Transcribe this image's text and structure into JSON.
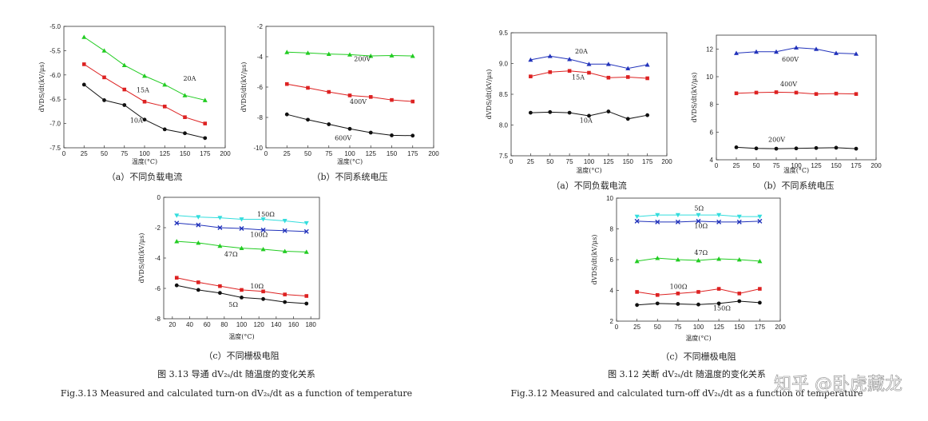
{
  "figures": [
    {
      "caption_cn": "图 3.13  导通 dV₂ₛ/dt  随温度的变化关系",
      "caption_en": "Fig.3.13 Measured and calculated turn-on dV₂ₛ/dt as a function of temperature"
    },
    {
      "caption_cn": "图 3.12  关断 dV₂ₛ/dt  随温度的变化关系",
      "caption_en": "Fig.3.12 Measured and calculated turn-off dV₂ₛ/dt as a function of temperature"
    }
  ],
  "watermark": "知乎 @卧虎藏龙",
  "chart_data": [
    {
      "id": "on_a",
      "type": "line",
      "subcaption": "（a）不同负载电流",
      "xlabel": "温度(°C)",
      "ylabel": "dVDS/dt(kV/μs)",
      "xlim": [
        0,
        200
      ],
      "ylim": [
        -7.5,
        -5.0
      ],
      "xticks": [
        0,
        25,
        50,
        75,
        100,
        125,
        150,
        175,
        200
      ],
      "yticks": [
        -7.5,
        -7.0,
        -6.5,
        -6.0,
        -5.5,
        -5.0
      ],
      "ytick_labels": [
        "-7.5",
        "-7.0",
        "-6.5",
        "-6.0",
        "-5.5",
        "-5.0"
      ],
      "x": [
        25,
        50,
        75,
        100,
        125,
        150,
        175
      ],
      "series": [
        {
          "name": "20A",
          "color": "#22cc22",
          "marker": "tri",
          "values": [
            -5.22,
            -5.5,
            -5.8,
            -6.02,
            -6.2,
            -6.42,
            -6.52
          ]
        },
        {
          "name": "15A",
          "color": "#dd2222",
          "marker": "square",
          "values": [
            -5.78,
            -6.05,
            -6.3,
            -6.55,
            -6.65,
            -6.87,
            -7.0
          ]
        },
        {
          "name": "10A",
          "color": "#111111",
          "marker": "circle",
          "values": [
            -6.2,
            -6.52,
            -6.62,
            -6.92,
            -7.12,
            -7.2,
            -7.3
          ]
        }
      ],
      "annotations": [
        {
          "text": "20A",
          "x": 148,
          "y": -6.12
        },
        {
          "text": "15A",
          "x": 90,
          "y": -6.36
        },
        {
          "text": "10A",
          "x": 82,
          "y": -6.98
        }
      ]
    },
    {
      "id": "on_b",
      "type": "line",
      "subcaption": "（b）不同系统电压",
      "xlabel": "温度(°C)",
      "ylabel": "dVDS/dt(kV/μs)",
      "xlim": [
        0,
        200
      ],
      "ylim": [
        -10,
        -2
      ],
      "xticks": [
        0,
        25,
        50,
        75,
        100,
        125,
        150,
        175,
        200
      ],
      "yticks": [
        -10,
        -8,
        -6,
        -4,
        -2
      ],
      "ytick_labels": [
        "-10",
        "-8",
        "-6",
        "-4",
        "-2"
      ],
      "x": [
        25,
        50,
        75,
        100,
        125,
        150,
        175
      ],
      "series": [
        {
          "name": "200V",
          "color": "#22cc22",
          "marker": "tri",
          "values": [
            -3.7,
            -3.75,
            -3.82,
            -3.86,
            -3.95,
            -3.92,
            -3.95
          ]
        },
        {
          "name": "400V",
          "color": "#dd2222",
          "marker": "square",
          "values": [
            -5.8,
            -6.05,
            -6.32,
            -6.55,
            -6.65,
            -6.85,
            -6.95
          ]
        },
        {
          "name": "600V",
          "color": "#111111",
          "marker": "circle",
          "values": [
            -7.8,
            -8.15,
            -8.45,
            -8.75,
            -9.0,
            -9.18,
            -9.2
          ]
        }
      ],
      "annotations": [
        {
          "text": "200V",
          "x": 105,
          "y": -4.3
        },
        {
          "text": "400V",
          "x": 100,
          "y": -7.1
        },
        {
          "text": "600V",
          "x": 82,
          "y": -9.5
        }
      ]
    },
    {
      "id": "on_c",
      "type": "line",
      "subcaption": "（c）不同栅极电阻",
      "xlabel": "温度(°C)",
      "ylabel": "dVDS/dt(kV/μs)",
      "xlim": [
        10,
        190
      ],
      "ylim": [
        -8,
        0
      ],
      "xticks": [
        20,
        40,
        60,
        80,
        100,
        120,
        140,
        160,
        180
      ],
      "yticks": [
        -8,
        -6,
        -4,
        -2,
        0
      ],
      "ytick_labels": [
        "-8",
        "-6",
        "-4",
        "-2",
        "0"
      ],
      "x": [
        25,
        50,
        75,
        100,
        125,
        150,
        175
      ],
      "series": [
        {
          "name": "150Ω",
          "color": "#33dddd",
          "marker": "tridown",
          "values": [
            -1.2,
            -1.3,
            -1.35,
            -1.45,
            -1.45,
            -1.55,
            -1.7
          ]
        },
        {
          "name": "100Ω",
          "color": "#2233bb",
          "marker": "x",
          "values": [
            -1.7,
            -1.82,
            -2.0,
            -2.05,
            -2.15,
            -2.2,
            -2.25
          ]
        },
        {
          "name": "47Ω",
          "color": "#22cc22",
          "marker": "tri",
          "values": [
            -2.9,
            -3.0,
            -3.2,
            -3.35,
            -3.42,
            -3.55,
            -3.6
          ]
        },
        {
          "name": "10Ω",
          "color": "#dd2222",
          "marker": "square",
          "values": [
            -5.3,
            -5.6,
            -5.85,
            -6.1,
            -6.2,
            -6.4,
            -6.5
          ]
        },
        {
          "name": "5Ω",
          "color": "#111111",
          "marker": "circle",
          "values": [
            -5.8,
            -6.1,
            -6.3,
            -6.6,
            -6.7,
            -6.9,
            -7.0
          ]
        }
      ],
      "annotations": [
        {
          "text": "150Ω",
          "x": 118,
          "y": -1.25
        },
        {
          "text": "100Ω",
          "x": 110,
          "y": -2.6
        },
        {
          "text": "47Ω",
          "x": 80,
          "y": -3.9
        },
        {
          "text": "10Ω",
          "x": 110,
          "y": -6.0
        },
        {
          "text": "5Ω",
          "x": 85,
          "y": -7.2
        }
      ]
    },
    {
      "id": "off_a",
      "type": "line",
      "subcaption": "（a）不同负载电流",
      "xlabel": "温度(°C)",
      "ylabel": "dVDS/dt(kV/μs)",
      "xlim": [
        0,
        200
      ],
      "ylim": [
        7.5,
        9.5
      ],
      "xticks": [
        0,
        25,
        50,
        75,
        100,
        125,
        150,
        175,
        200
      ],
      "yticks": [
        7.5,
        8.0,
        8.5,
        9.0,
        9.5
      ],
      "ytick_labels": [
        "7.5",
        "8.0",
        "8.5",
        "9.0",
        "9.5"
      ],
      "x": [
        25,
        50,
        75,
        100,
        125,
        150,
        175
      ],
      "series": [
        {
          "name": "20A",
          "color": "#2233bb",
          "marker": "tri",
          "values": [
            9.06,
            9.12,
            9.07,
            8.99,
            8.99,
            8.92,
            8.98
          ]
        },
        {
          "name": "15A",
          "color": "#dd2222",
          "marker": "square",
          "values": [
            8.79,
            8.86,
            8.88,
            8.85,
            8.77,
            8.78,
            8.76
          ]
        },
        {
          "name": "10A",
          "color": "#111111",
          "marker": "circle",
          "values": [
            8.2,
            8.21,
            8.2,
            8.15,
            8.22,
            8.1,
            8.16
          ]
        }
      ],
      "annotations": [
        {
          "text": "20A",
          "x": 82,
          "y": 9.16
        },
        {
          "text": "15A",
          "x": 78,
          "y": 8.74
        },
        {
          "text": "10A",
          "x": 88,
          "y": 8.04
        }
      ]
    },
    {
      "id": "off_b",
      "type": "line",
      "subcaption": "（b）不同系统电压",
      "xlabel": "温度(°C)",
      "ylabel": "dVDS/dt(kV/μs)",
      "xlim": [
        0,
        200
      ],
      "ylim": [
        4,
        13
      ],
      "xticks": [
        0,
        25,
        50,
        75,
        100,
        125,
        150,
        175,
        200
      ],
      "yticks": [
        4,
        6,
        8,
        10,
        12
      ],
      "ytick_labels": [
        "4",
        "6",
        "8",
        "10",
        "12"
      ],
      "x": [
        25,
        50,
        75,
        100,
        125,
        150,
        175
      ],
      "series": [
        {
          "name": "600V",
          "color": "#2233bb",
          "marker": "tri",
          "values": [
            11.7,
            11.8,
            11.8,
            12.1,
            12.0,
            11.7,
            11.65
          ]
        },
        {
          "name": "400V",
          "color": "#dd2222",
          "marker": "square",
          "values": [
            8.8,
            8.85,
            8.88,
            8.85,
            8.75,
            8.78,
            8.75
          ]
        },
        {
          "name": "200V",
          "color": "#111111",
          "marker": "circle",
          "values": [
            4.9,
            4.82,
            4.8,
            4.82,
            4.85,
            4.87,
            4.8
          ]
        }
      ],
      "annotations": [
        {
          "text": "600V",
          "x": 82,
          "y": 11.1
        },
        {
          "text": "400V",
          "x": 80,
          "y": 9.3
        },
        {
          "text": "200V",
          "x": 65,
          "y": 5.3
        }
      ]
    },
    {
      "id": "off_c",
      "type": "line",
      "subcaption": "（c）不同栅极电阻",
      "xlabel": "温度(°C)",
      "ylabel": "dVDS/dt(kV/μs)",
      "xlim": [
        0,
        200
      ],
      "ylim": [
        2,
        10
      ],
      "xticks": [
        0,
        25,
        50,
        75,
        100,
        125,
        150,
        175,
        200
      ],
      "yticks": [
        2,
        4,
        6,
        8,
        10
      ],
      "ytick_labels": [
        "2",
        "4",
        "6",
        "8",
        "10"
      ],
      "x": [
        25,
        50,
        75,
        100,
        125,
        150,
        175
      ],
      "series": [
        {
          "name": "5Ω",
          "color": "#33dddd",
          "marker": "tridown",
          "values": [
            8.8,
            8.9,
            8.9,
            8.9,
            8.9,
            8.8,
            8.8
          ]
        },
        {
          "name": "10Ω",
          "color": "#2233bb",
          "marker": "x",
          "values": [
            8.5,
            8.45,
            8.45,
            8.5,
            8.45,
            8.45,
            8.5
          ]
        },
        {
          "name": "47Ω",
          "color": "#22cc22",
          "marker": "tri",
          "values": [
            5.9,
            6.1,
            6.0,
            5.95,
            6.05,
            6.0,
            5.9
          ]
        },
        {
          "name": "100Ω",
          "color": "#dd2222",
          "marker": "square",
          "values": [
            3.9,
            3.7,
            3.8,
            3.9,
            4.1,
            3.8,
            4.1
          ]
        },
        {
          "name": "150Ω",
          "color": "#111111",
          "marker": "circle",
          "values": [
            3.05,
            3.15,
            3.12,
            3.08,
            3.15,
            3.3,
            3.2
          ]
        }
      ],
      "annotations": [
        {
          "text": "5Ω",
          "x": 95,
          "y": 9.2
        },
        {
          "text": "10Ω",
          "x": 95,
          "y": 8.05
        },
        {
          "text": "47Ω",
          "x": 95,
          "y": 6.3
        },
        {
          "text": "100Ω",
          "x": 65,
          "y": 4.1
        },
        {
          "text": "150Ω",
          "x": 118,
          "y": 2.7
        }
      ]
    }
  ]
}
